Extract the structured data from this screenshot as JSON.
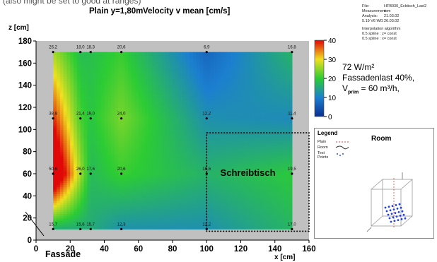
{
  "header": {
    "partial_text": "(also might be set to good at ranges)",
    "plane_label": "Plain y=1,80m",
    "metric_label": "Velocity v mean [cm/s]"
  },
  "meta": [
    {
      "key": "File:",
      "value": "HFB030_Ecktisch_Last2"
    },
    {
      "key": "Measurement:",
      "value": "rom"
    },
    {
      "key": "Analysis:",
      "value": "21.03.02"
    },
    {
      "key": "5.19 V6 WG",
      "value": "26.03.02"
    },
    {
      "key": "Interpolation algorithm",
      "value": ""
    },
    {
      "key": "0.5  spline : z= const",
      "value": ""
    },
    {
      "key": "0.5  spline : x= const",
      "value": ""
    }
  ],
  "annotations": {
    "load": "72 W/m²",
    "facade_load": "Fassadenlast 40%,",
    "vprim": "V",
    "vprim_sub": "prim",
    "vprim_value": " = 60 m³/h,",
    "desk": "Schreibtisch",
    "facade": "Fassade"
  },
  "legend": {
    "title": "Legend",
    "room_title": "Room",
    "items": [
      "Plain",
      "Room",
      "Test Points"
    ]
  },
  "colors": {
    "plot_background": "#c0c0c0",
    "low": "#1040a0",
    "mid": "#2ccc34",
    "high": "#e81010"
  },
  "chart_data": {
    "type": "heatmap",
    "xlabel": "x [cm]",
    "ylabel": "z [cm]",
    "xlim": [
      0,
      160
    ],
    "ylim": [
      0,
      180
    ],
    "xticks": [
      0,
      20,
      40,
      60,
      80,
      100,
      120,
      140,
      160
    ],
    "yticks": [
      0,
      20,
      40,
      60,
      80,
      100,
      120,
      140,
      160,
      180
    ],
    "colorbar": {
      "min": 0,
      "max": 40,
      "ticks": [
        0,
        10,
        20,
        30,
        40
      ]
    },
    "measurement_x": [
      10,
      26,
      32,
      50,
      100,
      150
    ],
    "measurement_z": [
      10,
      60,
      110,
      170
    ],
    "points": [
      {
        "x": 10,
        "z": 170,
        "v": "26,2"
      },
      {
        "x": 26,
        "z": 170,
        "v": "18,0"
      },
      {
        "x": 32,
        "z": 170,
        "v": "18,3"
      },
      {
        "x": 50,
        "z": 170,
        "v": "20,6"
      },
      {
        "x": 100,
        "z": 170,
        "v": "6,9"
      },
      {
        "x": 150,
        "z": 170,
        "v": "16,8"
      },
      {
        "x": 10,
        "z": 110,
        "v": "38,8"
      },
      {
        "x": 26,
        "z": 110,
        "v": "21,4"
      },
      {
        "x": 32,
        "z": 110,
        "v": "19,0"
      },
      {
        "x": 50,
        "z": 110,
        "v": "24,0"
      },
      {
        "x": 100,
        "z": 110,
        "v": "12,2"
      },
      {
        "x": 150,
        "z": 110,
        "v": "11,4"
      },
      {
        "x": 10,
        "z": 60,
        "v": "50,6"
      },
      {
        "x": 26,
        "z": 60,
        "v": "26,0"
      },
      {
        "x": 32,
        "z": 60,
        "v": "17,6"
      },
      {
        "x": 50,
        "z": 60,
        "v": "20,6"
      },
      {
        "x": 100,
        "z": 60,
        "v": "16,6"
      },
      {
        "x": 150,
        "z": 60,
        "v": "19,5"
      },
      {
        "x": 10,
        "z": 10,
        "v": "15,7"
      },
      {
        "x": 26,
        "z": 10,
        "v": "15,6"
      },
      {
        "x": 32,
        "z": 10,
        "v": "15,7"
      },
      {
        "x": 50,
        "z": 10,
        "v": "12,3"
      },
      {
        "x": 100,
        "z": 10,
        "v": "12,2"
      },
      {
        "x": 150,
        "z": 10,
        "v": "17,0"
      }
    ],
    "desk_region": {
      "x": [
        100,
        160
      ],
      "z": [
        8,
        97
      ]
    }
  }
}
